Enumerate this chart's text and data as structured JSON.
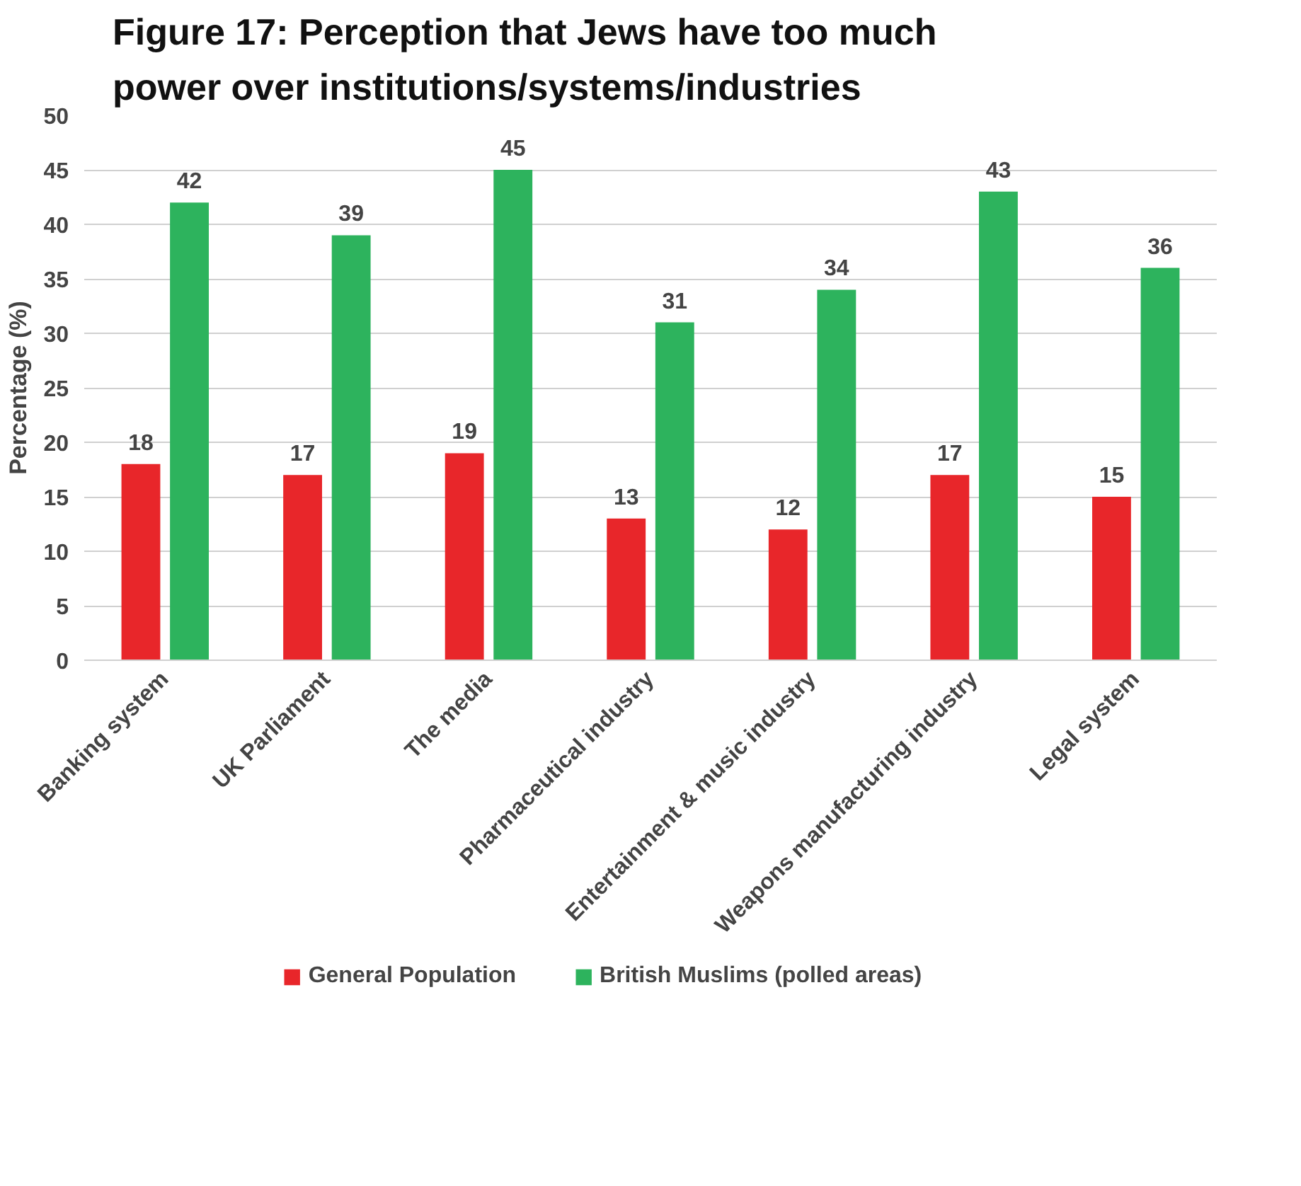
{
  "chart_data": {
    "type": "bar",
    "title": "Figure 17: Perception that Jews have too much power over institutions/systems/industries",
    "ylabel": "Percentage (%)",
    "categories": [
      "Banking system",
      "UK Parliament",
      "The media",
      "Pharmaceutical industry",
      "Entertainment & music industry",
      "Weapons manufacturing industry",
      "Legal system"
    ],
    "series": [
      {
        "name": "General Population",
        "color": "#e8262a",
        "values": [
          18,
          17,
          19,
          13,
          12,
          17,
          15
        ]
      },
      {
        "name": "British Muslims (polled areas)",
        "color": "#2db35d",
        "values": [
          42,
          39,
          45,
          31,
          34,
          43,
          36
        ]
      }
    ],
    "ylim": [
      0,
      50
    ],
    "yticks": [
      0,
      5,
      10,
      15,
      20,
      25,
      30,
      35,
      40,
      45,
      50
    ],
    "grid": "y",
    "legend": "bottom",
    "data_labels": true
  }
}
